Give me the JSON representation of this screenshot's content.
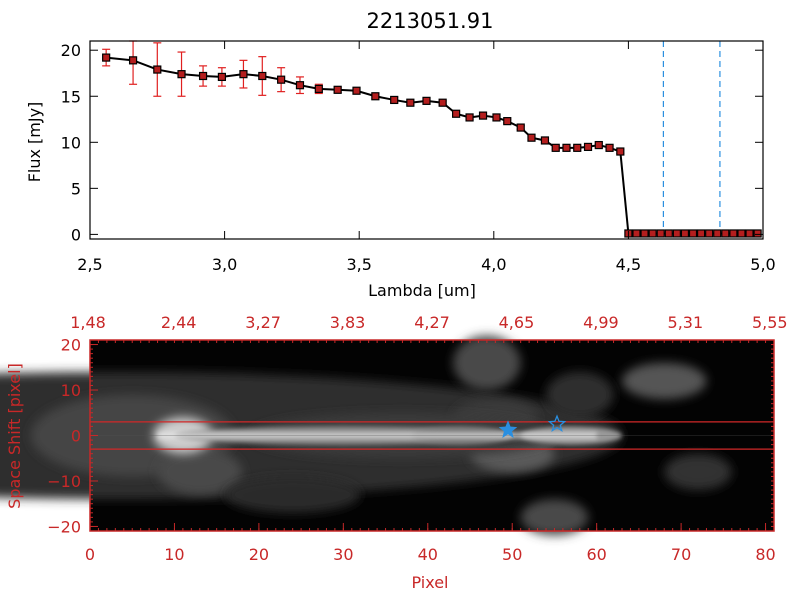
{
  "chart_data": [
    {
      "type": "line",
      "title": "2213051.91",
      "xlabel": "Lambda [um]",
      "ylabel": "Flux [mJy]",
      "xlim": [
        2.5,
        5.0
      ],
      "ylim": [
        -0.5,
        21
      ],
      "xticks": [
        "2.5",
        "3.0",
        "3.5",
        "4.0",
        "4.5",
        "5.0"
      ],
      "yticks": [
        "0",
        "5",
        "10",
        "15",
        "20"
      ],
      "vlines": [
        4.63,
        4.84
      ],
      "colors": {
        "line": "#000000",
        "marker": "#b41e1e",
        "error": "#e02020",
        "vline": "#2a8fe0"
      },
      "series": [
        {
          "x": [
            2.56,
            2.66,
            2.75,
            2.84,
            2.92,
            2.99,
            3.07,
            3.14,
            3.21,
            3.28,
            3.35,
            3.42,
            3.49,
            3.56,
            3.63,
            3.69,
            3.75,
            3.81,
            3.86,
            3.91,
            3.96,
            4.01,
            4.05,
            4.1,
            4.14,
            4.19,
            4.23,
            4.27,
            4.31,
            4.35,
            4.39,
            4.43,
            4.47,
            4.5,
            4.53,
            4.56,
            4.59,
            4.62,
            4.65,
            4.68,
            4.71,
            4.74,
            4.77,
            4.8,
            4.83,
            4.86,
            4.89,
            4.92,
            4.95,
            4.98
          ],
          "values": [
            19.2,
            18.9,
            17.9,
            17.4,
            17.2,
            17.1,
            17.4,
            17.2,
            16.8,
            16.2,
            15.8,
            15.7,
            15.6,
            15.0,
            14.6,
            14.3,
            14.5,
            14.3,
            13.1,
            12.7,
            12.9,
            12.7,
            12.3,
            11.6,
            10.5,
            10.2,
            9.4,
            9.4,
            9.4,
            9.5,
            9.7,
            9.4,
            9.0,
            0.1,
            0.1,
            0.1,
            0.1,
            0.1,
            0.1,
            0.1,
            0.1,
            0.1,
            0.1,
            0.1,
            0.1,
            0.1,
            0.1,
            0.1,
            0.1,
            0.1
          ],
          "errors": [
            0.9,
            2.6,
            2.9,
            2.4,
            1.1,
            1.0,
            1.5,
            2.1,
            1.3,
            0.9,
            0.5,
            0.3,
            0.3,
            0.3,
            0.3,
            0.2,
            0.2,
            0.2,
            0.2,
            0.2,
            0.2,
            0.2,
            0.2,
            0.2,
            0.2,
            0.2,
            0.2,
            0.2,
            0.2,
            0.2,
            0.2,
            0.2,
            0.2,
            0,
            0,
            0,
            0,
            0,
            0,
            0,
            0,
            0,
            0,
            0,
            0,
            0,
            0,
            0,
            0,
            0
          ]
        }
      ]
    },
    {
      "type": "heatmap",
      "xlabel": "Pixel",
      "ylabel": "Space Shift [pixel]",
      "xlim": [
        0,
        81
      ],
      "ylim": [
        -21,
        21
      ],
      "xticks": [
        "0",
        "10",
        "20",
        "30",
        "40",
        "50",
        "60",
        "70",
        "80"
      ],
      "yticks": [
        "20",
        "10",
        "0",
        "-10",
        "-20"
      ],
      "top_ticks": [
        "1.48",
        "2.44",
        "3.27",
        "3.83",
        "4.27",
        "4.65",
        "4.99",
        "5.31",
        "5.55"
      ],
      "hlines": [
        3,
        -3
      ],
      "stars": [
        {
          "x": 49.5,
          "y": 1.2
        },
        {
          "x": 55.3,
          "y": 2.5
        }
      ],
      "colors": {
        "axis": "#c82828",
        "hline": "#d22828",
        "star": "#2a8fe0"
      }
    }
  ]
}
